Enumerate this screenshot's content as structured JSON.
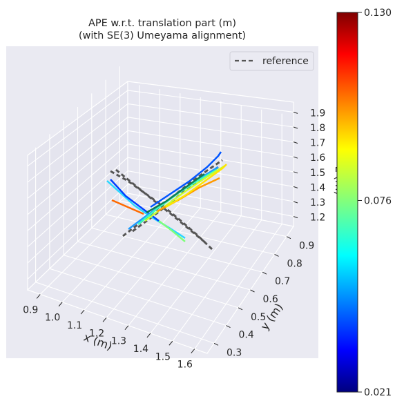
{
  "title_line1": "APE w.r.t. translation part (m)",
  "title_line2": "(with SE(3) Umeyama alignment)",
  "chart_data": {
    "type": "scatter",
    "projection": "3d",
    "title": "APE w.r.t. translation part (m) (with SE(3) Umeyama alignment)",
    "xlabel": "x (m)",
    "ylabel": "y (m)",
    "zlabel": "z (m)",
    "x_ticks": [
      "0.9",
      "1.0",
      "1.1",
      "1.2",
      "1.3",
      "1.4",
      "1.5",
      "1.6"
    ],
    "y_ticks": [
      "0.3",
      "0.4",
      "0.5",
      "0.6",
      "0.7",
      "0.8",
      "0.9"
    ],
    "z_ticks": [
      "1.2",
      "1.3",
      "1.4",
      "1.5",
      "1.6",
      "1.7",
      "1.8",
      "1.9"
    ],
    "legend": {
      "entries": [
        "reference"
      ],
      "placement": "top-right",
      "style": "dashed",
      "color": "#555555"
    },
    "colorbar": {
      "min": 0.021,
      "max": 0.13,
      "tick_labels": [
        "0.130",
        "0.076",
        "0.021"
      ],
      "colormap": "jet"
    },
    "grid": true,
    "background": "#eaeaf2"
  }
}
